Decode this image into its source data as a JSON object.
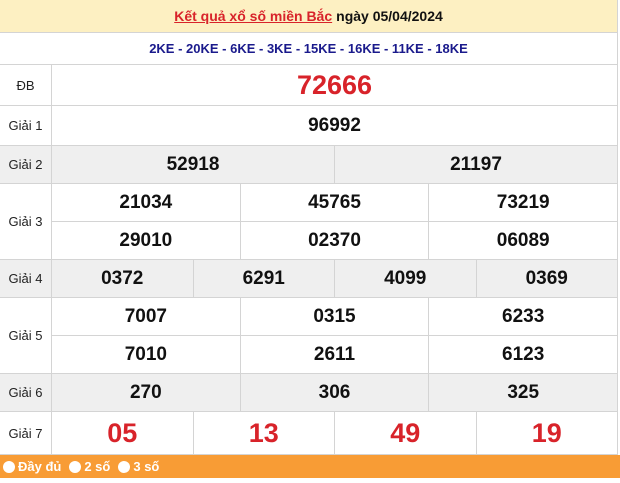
{
  "header": {
    "link": "Kết quả xổ số miền Bắc",
    "date_text": "ngày 05/04/2024"
  },
  "codes": "2KE - 20KE - 6KE - 3KE - 15KE - 16KE - 11KE - 18KE",
  "prizes": [
    {
      "label": "ĐB",
      "lines": [
        [
          "72666"
        ]
      ]
    },
    {
      "label": "Giải 1",
      "lines": [
        [
          "96992"
        ]
      ]
    },
    {
      "label": "Giải 2",
      "lines": [
        [
          "52918",
          "21197"
        ]
      ]
    },
    {
      "label": "Giải 3",
      "lines": [
        [
          "21034",
          "45765",
          "73219"
        ],
        [
          "29010",
          "02370",
          "06089"
        ]
      ]
    },
    {
      "label": "Giải 4",
      "lines": [
        [
          "0372",
          "6291",
          "4099",
          "0369"
        ]
      ]
    },
    {
      "label": "Giải 5",
      "lines": [
        [
          "7007",
          "0315",
          "6233"
        ],
        [
          "7010",
          "2611",
          "6123"
        ]
      ]
    },
    {
      "label": "Giải 6",
      "lines": [
        [
          "270",
          "306",
          "325"
        ]
      ]
    },
    {
      "label": "Giải 7",
      "lines": [
        [
          "05",
          "13",
          "49",
          "19"
        ]
      ]
    }
  ],
  "options": [
    "Đầy đủ",
    "2 số",
    "3 số"
  ],
  "colors": {
    "header_bg": "#fdf0c2",
    "accent_red": "#d8232a",
    "footer_orange": "#f89c35",
    "codes_blue": "#1a1a8c"
  }
}
